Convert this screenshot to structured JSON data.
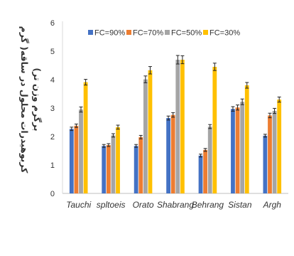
{
  "chart_data": {
    "type": "bar",
    "title": "",
    "xlabel": "",
    "ylabel_lines": [
      "کربوهیدرات محلول در ساقه( گرم",
      "برگرم وزن تر)"
    ],
    "ylim": [
      0,
      6
    ],
    "yticks": [
      "0",
      "1",
      "2",
      "3",
      "4",
      "5",
      "6"
    ],
    "grid": false,
    "legend_position": "top",
    "categories": [
      "Tauchi",
      "spltoeis",
      "Orato",
      "Shabrang",
      "Behrang",
      "Sistan",
      "Argh"
    ],
    "series": [
      {
        "name": "FC=90%",
        "color": "#4472C4",
        "values": [
          2.27,
          1.67,
          1.67,
          2.65,
          1.33,
          2.97,
          2.03
        ]
      },
      {
        "name": "FC=70%",
        "color": "#ED7D31",
        "values": [
          2.38,
          1.7,
          1.98,
          2.76,
          1.53,
          3.02,
          2.74
        ]
      },
      {
        "name": "FC=50%",
        "color": "#A5A5A5",
        "values": [
          2.95,
          2.04,
          4.01,
          4.7,
          2.35,
          3.22,
          2.9
        ]
      },
      {
        "name": "FC=30%",
        "color": "#FFC000",
        "values": [
          3.91,
          2.33,
          4.33,
          4.7,
          4.45,
          3.8,
          3.3
        ]
      }
    ],
    "error": [
      [
        0.06,
        0.06,
        0.09,
        0.1
      ],
      [
        0.05,
        0.05,
        0.06,
        0.07
      ],
      [
        0.05,
        0.06,
        0.12,
        0.13
      ],
      [
        0.07,
        0.08,
        0.15,
        0.14
      ],
      [
        0.05,
        0.05,
        0.07,
        0.13
      ],
      [
        0.08,
        0.09,
        0.1,
        0.1
      ],
      [
        0.05,
        0.08,
        0.09,
        0.09
      ]
    ]
  }
}
